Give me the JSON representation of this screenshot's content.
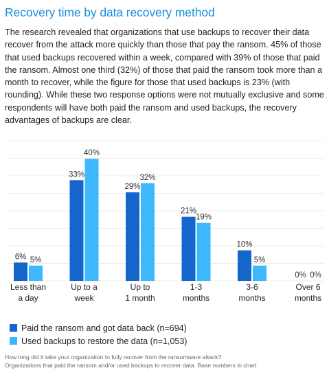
{
  "title": "Recovery time by data recovery method",
  "body": "The research revealed that organizations that use backups to recover their data recover from the attack more quickly than those that pay the ransom. 45% of those that used backups recovered within a week, compared with 39% of those that paid the ransom. Almost one third (32%) of those that paid the ransom took more than a month to recover, while the figure for those that used backups is 23% (with rounding). While these two response options were not mutually exclusive and some respondents will have both paid the ransom and used backups, the recovery advantages of backups are clear.",
  "footnote": {
    "line1": "How long did it take your organization to fully recover from the ransomware attack?",
    "line2": "Organizations that paid the ransom and/or used backups to recover data. Base numbers in chart"
  },
  "chart_data": {
    "type": "bar",
    "categories": [
      [
        "Less than",
        "a day"
      ],
      [
        "Up to a",
        "week"
      ],
      [
        "Up to",
        "1 month"
      ],
      [
        "1-3",
        "months"
      ],
      [
        "3-6",
        "months"
      ],
      [
        "Over 6",
        "months"
      ]
    ],
    "series": [
      {
        "name": "Paid the ransom and got data back (n=694)",
        "values": [
          6,
          33,
          29,
          21,
          10,
          0
        ],
        "labels": [
          "6%",
          "33%",
          "29%",
          "21%",
          "10%",
          "0%"
        ],
        "color": "#1466cc"
      },
      {
        "name": "Used backups to restore the data (n=1,053)",
        "values": [
          5,
          40,
          32,
          19,
          5,
          0
        ],
        "labels": [
          "5%",
          "40%",
          "32%",
          "19%",
          "5%",
          "0%"
        ],
        "color": "#3db8ff"
      }
    ],
    "ylim": [
      0,
      45
    ],
    "grid": true
  }
}
